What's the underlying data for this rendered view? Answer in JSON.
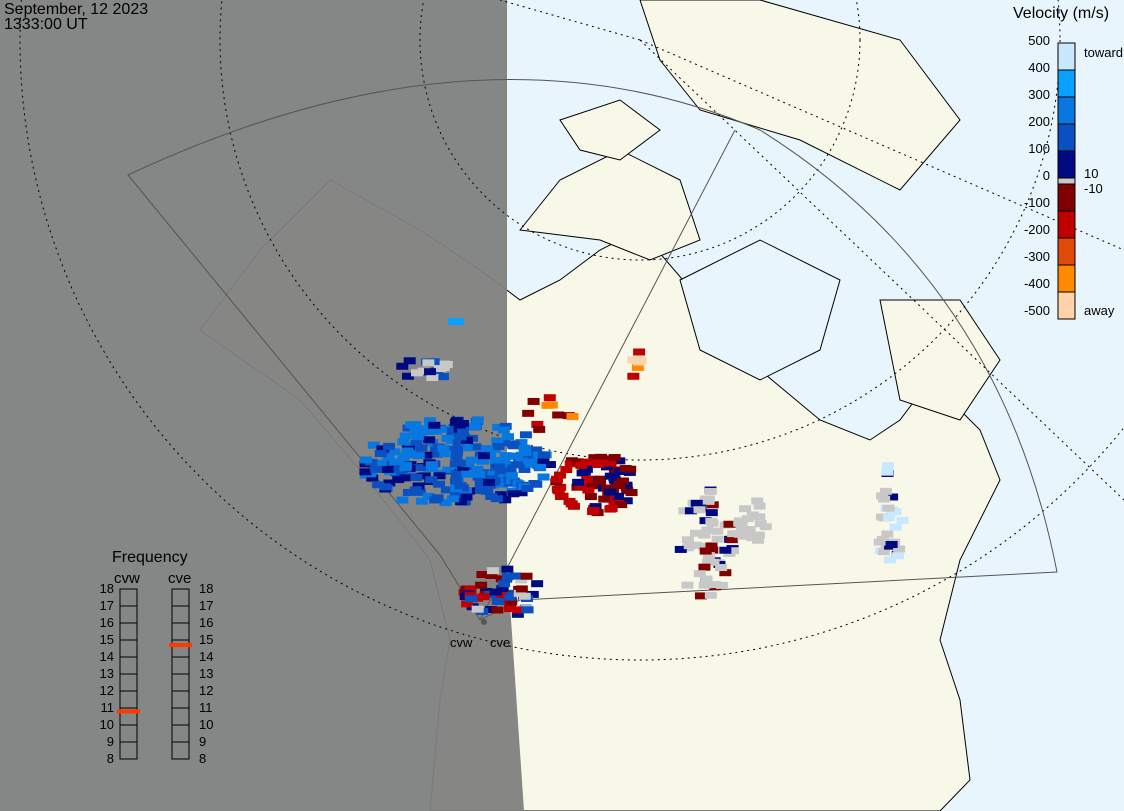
{
  "header": {
    "date": "September, 12 2023",
    "time": "1333:00 UT"
  },
  "colorbar": {
    "title": "Velocity (m/s)",
    "ticks": [
      "500",
      "400",
      "300",
      "200",
      "100",
      "0",
      "-100",
      "-200",
      "-300",
      "-400",
      "-500"
    ],
    "near_zero_labels": [
      "10",
      "-10"
    ],
    "toward_label": "toward",
    "away_label": "away",
    "colors_toward": [
      "#c8e8ff",
      "#0aa0ff",
      "#0878e0",
      "#0a50c0",
      "#000a80"
    ],
    "colors_away": [
      "#800000",
      "#c00000",
      "#e04a08",
      "#ff8a00",
      "#ffd2a8"
    ],
    "ground_scatter_color": "#c8c8c8"
  },
  "frequency": {
    "title": "Frequency",
    "radars": [
      {
        "name": "cvw",
        "value_mhz": 10.8
      },
      {
        "name": "cve",
        "value_mhz": 14.7
      }
    ],
    "ticks": [
      "18",
      "17",
      "16",
      "15",
      "14",
      "13",
      "12",
      "11",
      "10",
      "9",
      "8"
    ],
    "marker_color": "#ff3a00"
  },
  "map": {
    "night_color": "#808080",
    "ocean_color": "#e9f5fd",
    "land_color": "#f8f8e8",
    "radar_labels": [
      "cvw",
      "cve"
    ]
  }
}
